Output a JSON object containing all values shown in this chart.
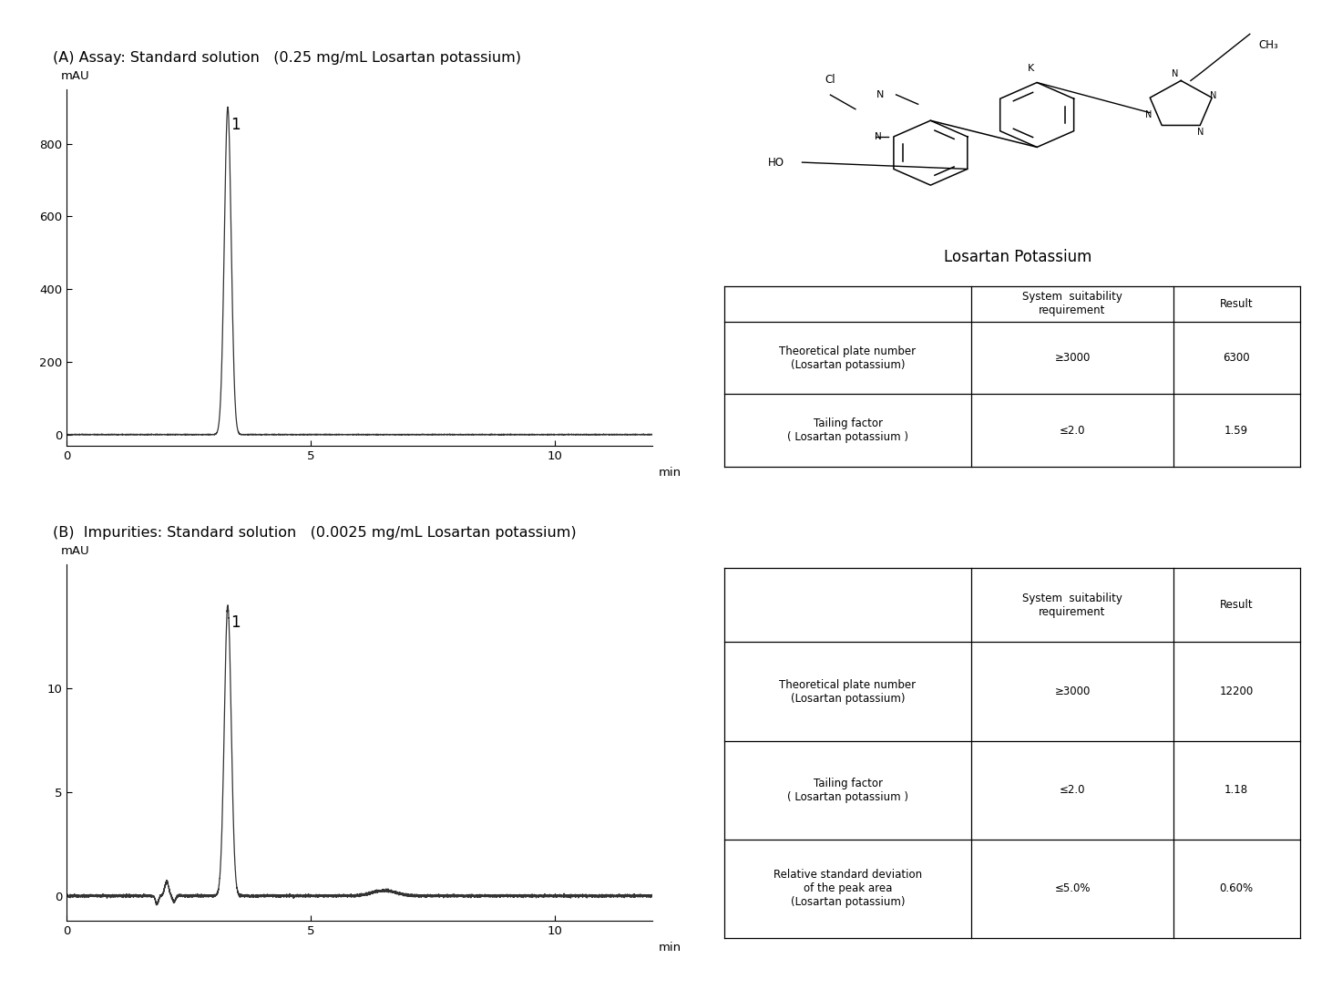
{
  "title_A": "(A) Assay: Standard solution   (0.25 mg/mL Losartan potassium)",
  "title_B": "(B)  Impurities: Standard solution   (0.0025 mg/mL Losartan potassium)",
  "mau_label": "mAU",
  "xlabel": "min",
  "peak_A_x": 3.3,
  "peak_A_y": 900,
  "peak_B_x": 3.3,
  "peak_B_y": 14,
  "xlim": [
    0,
    12
  ],
  "ylim_A": [
    -30,
    950
  ],
  "ylim_B": [
    -1.2,
    16
  ],
  "yticks_A": [
    0,
    200,
    400,
    600,
    800
  ],
  "yticks_B": [
    0,
    5,
    10
  ],
  "xticks": [
    0,
    5,
    10
  ],
  "table_A": {
    "col_labels": [
      "",
      "System  suitability\nrequirement",
      "Result"
    ],
    "rows": [
      [
        "Theoretical plate number\n(Losartan potassium)",
        "≥3000",
        "6300"
      ],
      [
        "Tailing factor\n( Losartan potassium )",
        "≤2.0",
        "1.59"
      ]
    ]
  },
  "table_B": {
    "col_labels": [
      "",
      "System  suitability\nrequirement",
      "Result"
    ],
    "rows": [
      [
        "Theoretical plate number\n(Losartan potassium)",
        "≥3000",
        "12200"
      ],
      [
        "Tailing factor\n( Losartan potassium )",
        "≤2.0",
        "1.18"
      ],
      [
        "Relative standard deviation\nof the peak area\n(Losartan potassium)",
        "≤5.0%",
        "0.60%"
      ]
    ]
  },
  "losartan_label": "Losartan Potassium",
  "background_color": "#ffffff",
  "line_color": "#333333"
}
